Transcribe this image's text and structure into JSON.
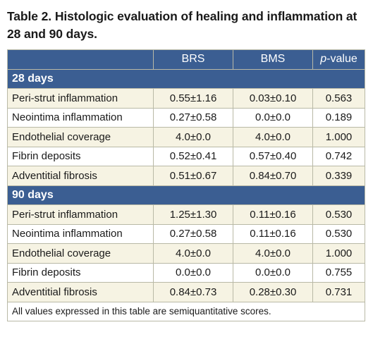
{
  "caption": "Table 2. Histologic evaluation of healing and inflammation at 28 and 90 days.",
  "columns": {
    "c1": "BRS",
    "c2": "BMS",
    "c3_italic": "p",
    "c3_rest": "-value"
  },
  "sections": [
    {
      "title": "28 days",
      "rows": [
        {
          "label": "Peri-strut inflammation",
          "brs": "0.55±1.16",
          "bms": "0.03±0.10",
          "p": "0.563"
        },
        {
          "label": "Neointima inflammation",
          "brs": "0.27±0.58",
          "bms": "0.0±0.0",
          "p": "0.189"
        },
        {
          "label": "Endothelial coverage",
          "brs": "4.0±0.0",
          "bms": "4.0±0.0",
          "p": "1.000"
        },
        {
          "label": "Fibrin deposits",
          "brs": "0.52±0.41",
          "bms": "0.57±0.40",
          "p": "0.742"
        },
        {
          "label": "Adventitial fibrosis",
          "brs": "0.51±0.67",
          "bms": "0.84±0.70",
          "p": "0.339"
        }
      ]
    },
    {
      "title": "90 days",
      "rows": [
        {
          "label": "Peri-strut inflammation",
          "brs": "1.25±1.30",
          "bms": "0.11±0.16",
          "p": "0.530"
        },
        {
          "label": "Neointima inflammation",
          "brs": "0.27±0.58",
          "bms": "0.11±0.16",
          "p": "0.530"
        },
        {
          "label": "Endothelial coverage",
          "brs": "4.0±0.0",
          "bms": "4.0±0.0",
          "p": "1.000"
        },
        {
          "label": "Fibrin deposits",
          "brs": "0.0±0.0",
          "bms": "0.0±0.0",
          "p": "0.755"
        },
        {
          "label": "Adventitial fibrosis",
          "brs": "0.84±0.73",
          "bms": "0.28±0.30",
          "p": "0.731"
        }
      ]
    }
  ],
  "footnote": "All values expressed in this table are semiquantitative scores.",
  "colors": {
    "header_blue": "#3b5e92",
    "row_tint": "#f6f3e3",
    "border": "#b9b9a6"
  }
}
